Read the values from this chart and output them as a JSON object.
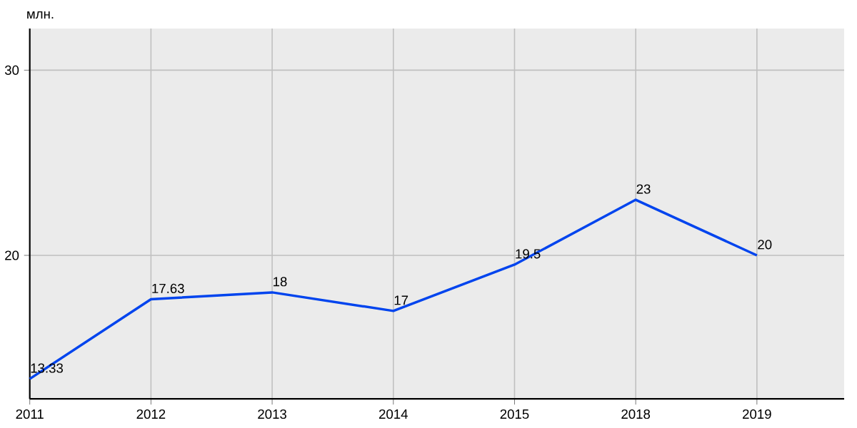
{
  "chart_data": {
    "type": "line",
    "ylabel": "млн.",
    "categories": [
      "2011",
      "2012",
      "2013",
      "2014",
      "2015",
      "2018",
      "2019"
    ],
    "series": [
      {
        "color": "#0044ee",
        "values": [
          13.33,
          17.63,
          18,
          17,
          19.5,
          23,
          20
        ]
      }
    ],
    "ylim": [
      12.25,
      32.25
    ],
    "yticks": [
      20,
      30
    ],
    "grid": true,
    "marker": "none",
    "line_style": "solid",
    "data_labels": true
  }
}
